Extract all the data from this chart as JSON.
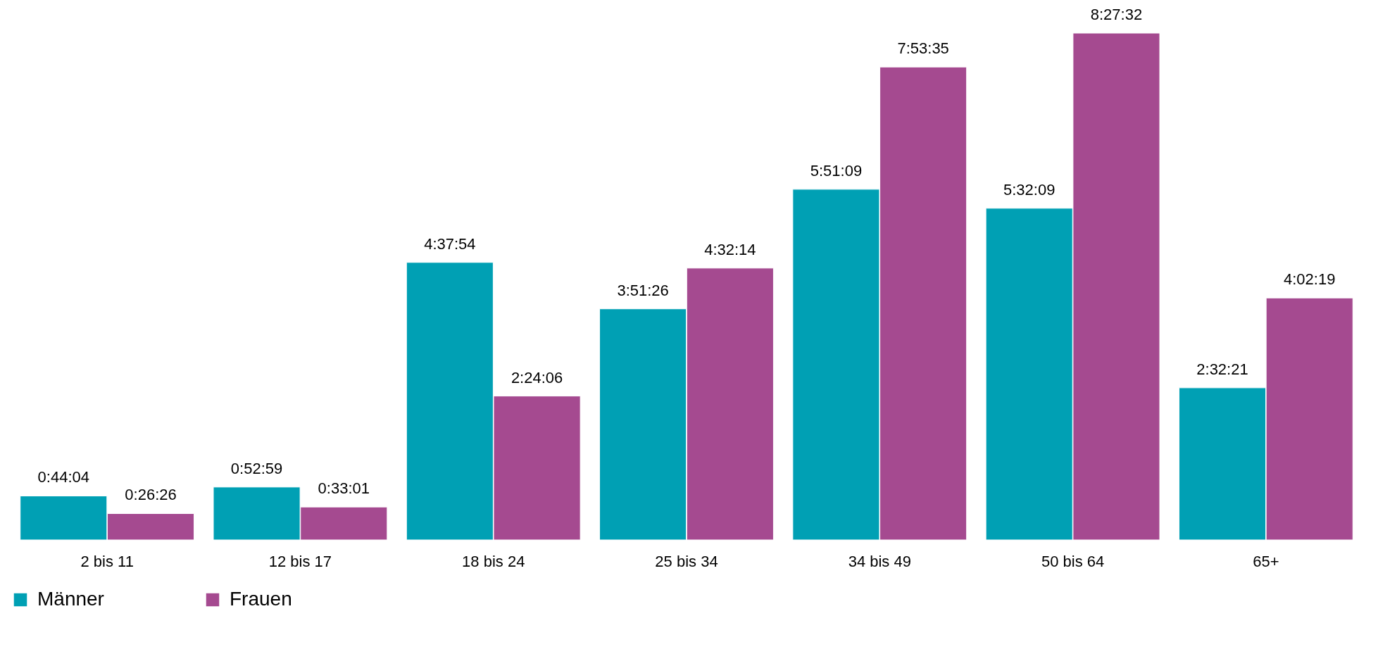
{
  "chart_data": {
    "type": "bar",
    "categories": [
      "2 bis 11",
      "12 bis 17",
      "18 bis 24",
      "25 bis 34",
      "34 bis 49",
      "50 bis 64",
      "65+"
    ],
    "series": [
      {
        "name": "Männer",
        "color": "#00a0b4",
        "values": [
          0.7344,
          0.8831,
          4.6317,
          3.8572,
          5.8525,
          5.5358,
          2.5392
        ],
        "value_labels": [
          "0:44:04",
          "0:52:59",
          "4:37:54",
          "3:51:26",
          "5:51:09",
          "5:32:09",
          "2:32:21"
        ]
      },
      {
        "name": "Frauen",
        "color": "#a54a90",
        "values": [
          0.4406,
          0.5503,
          2.4017,
          4.5372,
          7.8931,
          8.4589,
          4.0386
        ],
        "value_labels": [
          "0:26:26",
          "0:33:01",
          "2:24:06",
          "4:32:14",
          "7:53:35",
          "8:27:32",
          "4:02:19"
        ]
      }
    ],
    "legend": "bottom"
  }
}
